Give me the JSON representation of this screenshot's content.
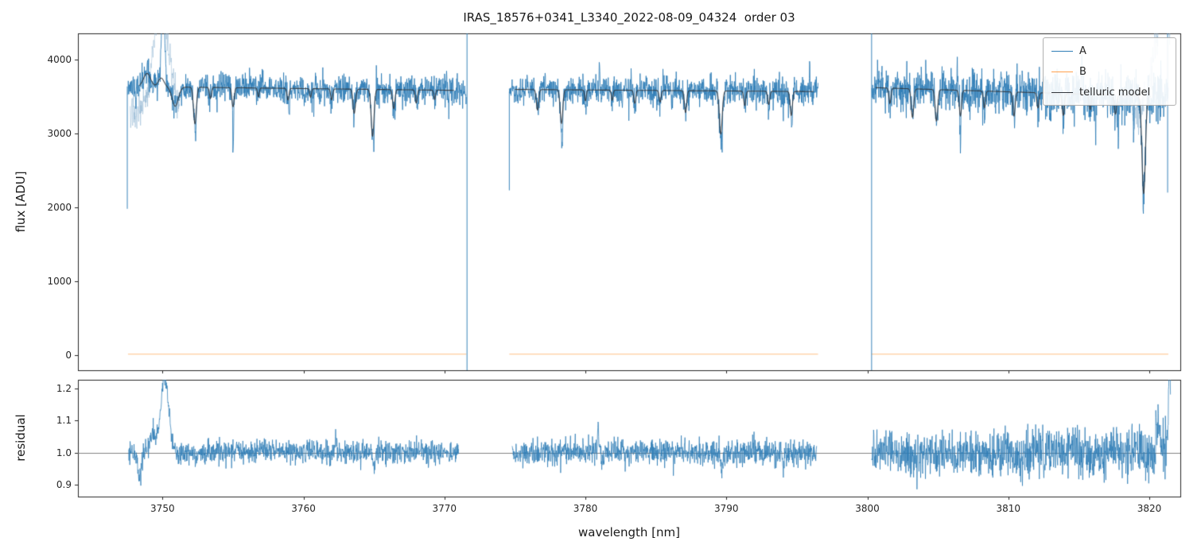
{
  "chart_data": {
    "type": "line",
    "title": "IRAS_18576+0341_L3340_2022-08-09_04324  order 03",
    "xlabel": "wavelength [nm]",
    "xlim": [
      3744.0,
      3822.2
    ],
    "xticks": [
      [
        3750,
        "3750"
      ],
      [
        3760,
        "3760"
      ],
      [
        3770,
        "3770"
      ],
      [
        3780,
        "3780"
      ],
      [
        3790,
        "3790"
      ],
      [
        3800,
        "3800"
      ],
      [
        3810,
        "3810"
      ],
      [
        3820,
        "3820"
      ]
    ],
    "legend": [
      {
        "label": "A",
        "color": "#2e7db6"
      },
      {
        "label": "B",
        "color": "#ffa04d"
      },
      {
        "label": "telluric model",
        "color": "#33373d"
      }
    ],
    "colors": {
      "A": "#2e7db6",
      "A_faint": "rgba(120,165,200,0.40)",
      "B": "#ffb877",
      "model": "#33373d",
      "hline": "#808080",
      "spine": "#262626"
    },
    "flux_panel": {
      "ylabel": "flux [ADU]",
      "ylim": [
        -210,
        4360
      ],
      "yticks": [
        [
          0,
          "0"
        ],
        [
          1000,
          "1000"
        ],
        [
          2000,
          "2000"
        ],
        [
          3000,
          "3000"
        ],
        [
          4000,
          "4000"
        ]
      ],
      "b_value": 8,
      "segments": [
        {
          "x0": 3747.55,
          "x1": 3771.55,
          "model_x0": 3748.35,
          "model_x1": 3770.7,
          "base0": 3640,
          "base1": 3585,
          "sigma": 95,
          "seed": 11,
          "lines": [
            [
              3752.3,
              500,
              0.1
            ],
            [
              3753.4,
              150,
              0.07
            ],
            [
              3755.0,
              260,
              0.08
            ],
            [
              3756.8,
              120,
              0.06
            ],
            [
              3758.9,
              160,
              0.07
            ],
            [
              3760.5,
              120,
              0.06
            ],
            [
              3762.0,
              150,
              0.07
            ],
            [
              3763.6,
              330,
              0.09
            ],
            [
              3764.9,
              640,
              0.1
            ],
            [
              3766.4,
              260,
              0.08
            ],
            [
              3768.0,
              180,
              0.07
            ],
            [
              3769.3,
              130,
              0.06
            ]
          ],
          "model_bumps": [
            [
              3748.9,
              180,
              0.25
            ],
            [
              3749.9,
              120,
              0.2
            ]
          ],
          "model_dips_extra": [
            [
              3750.9,
              260,
              0.22
            ]
          ],
          "blue_peaks": [
            [
              3750.05,
              1300,
              0.1
            ]
          ],
          "down_spikes": [
            [
              3752.35,
              360
            ],
            [
              3755.0,
              620
            ],
            [
              3759.0,
              250
            ],
            [
              3765.0,
              330
            ],
            [
              3766.5,
              260
            ],
            [
              3770.3,
              280
            ]
          ],
          "up_spikes": []
        },
        {
          "x0": 3774.6,
          "x1": 3796.5,
          "model_x0": 3775.0,
          "model_x1": 3796.2,
          "base0": 3600,
          "base1": 3570,
          "sigma": 95,
          "seed": 22,
          "lines": [
            [
              3776.6,
              280,
              0.08
            ],
            [
              3778.3,
              460,
              0.09
            ],
            [
              3780.0,
              150,
              0.06
            ],
            [
              3781.9,
              140,
              0.06
            ],
            [
              3783.5,
              180,
              0.07
            ],
            [
              3785.3,
              160,
              0.07
            ],
            [
              3787.1,
              300,
              0.08
            ],
            [
              3789.6,
              590,
              0.1
            ],
            [
              3791.3,
              200,
              0.07
            ],
            [
              3793.0,
              180,
              0.07
            ],
            [
              3794.6,
              330,
              0.08
            ]
          ],
          "model_bumps": [],
          "model_dips_extra": [],
          "blue_peaks": [],
          "down_spikes": [
            [
              3778.35,
              420
            ],
            [
              3782.6,
              300
            ],
            [
              3789.7,
              330
            ],
            [
              3794.65,
              260
            ]
          ],
          "up_spikes": [
            [
              3781.0,
              430
            ],
            [
              3795.9,
              380
            ]
          ]
        },
        {
          "x0": 3800.3,
          "x1": 3821.35,
          "model_x0": 3800.6,
          "model_x1": 3820.1,
          "base0": 3625,
          "base1": 3500,
          "sigma": 120,
          "sigma1": 170,
          "seed": 33,
          "lines": [
            [
              3801.6,
              210,
              0.07
            ],
            [
              3803.2,
              390,
              0.09
            ],
            [
              3804.9,
              430,
              0.09
            ],
            [
              3806.6,
              350,
              0.08
            ],
            [
              3808.3,
              230,
              0.07
            ],
            [
              3810.4,
              330,
              0.08
            ],
            [
              3812.1,
              210,
              0.07
            ],
            [
              3813.9,
              300,
              0.08
            ],
            [
              3815.8,
              210,
              0.07
            ],
            [
              3817.6,
              260,
              0.08
            ],
            [
              3819.6,
              1330,
              0.12
            ]
          ],
          "model_bumps": [],
          "model_dips_extra": [],
          "blue_peaks": [],
          "down_spikes": [
            [
              3806.6,
              380
            ],
            [
              3809.1,
              300
            ],
            [
              3813.0,
              340
            ],
            [
              3816.2,
              560
            ],
            [
              3817.8,
              680
            ],
            [
              3818.9,
              520
            ]
          ],
          "up_spikes": [
            [
              3815.2,
              380
            ]
          ]
        }
      ],
      "vspikes": [
        {
          "x": 3747.5,
          "y0": 1980,
          "y1": 3640
        },
        {
          "x": 3771.6,
          "y0": -210,
          "y1": 4360
        },
        {
          "x": 3774.6,
          "y0": 2230,
          "y1": 3570
        },
        {
          "x": 3800.3,
          "y0": -210,
          "y1": 4360
        },
        {
          "x": 3821.3,
          "y0": 2200,
          "y1": 4360
        }
      ],
      "faint_features": [
        {
          "x0": 3747.7,
          "x1": 3751.2,
          "base": 3250,
          "amp": 1500,
          "cx": 3749.9,
          "w": 0.55,
          "seed": 44,
          "sigma": 120
        },
        {
          "x0": 3818.8,
          "x1": 3821.6,
          "base": 3250,
          "amp": 1600,
          "cx": 3821.1,
          "w": 0.7,
          "seed": 55,
          "sigma": 150
        }
      ]
    },
    "residual_panel": {
      "ylabel": "residual",
      "ylim": [
        0.862,
        1.228
      ],
      "yticks": [
        [
          0.9,
          "0.9"
        ],
        [
          1.0,
          "1.0"
        ],
        [
          1.1,
          "1.1"
        ],
        [
          1.2,
          "1.2"
        ]
      ],
      "hline": 1.0,
      "segments": [
        {
          "x0": 3747.6,
          "x1": 3771.0,
          "sigma0": 0.018,
          "sigma1": 0.018,
          "seed": 66,
          "features": [
            [
              3750.15,
              0.23,
              0.28
            ],
            [
              3748.35,
              -0.075,
              0.16
            ],
            [
              3749.3,
              0.05,
              0.2
            ],
            [
              3752.35,
              -0.04,
              0.07
            ],
            [
              3762.3,
              0.05,
              0.05
            ],
            [
              3765.0,
              -0.045,
              0.06
            ]
          ]
        },
        {
          "x0": 3774.8,
          "x1": 3796.4,
          "sigma0": 0.02,
          "sigma1": 0.02,
          "seed": 77,
          "features": [
            [
              3780.9,
              0.09,
              0.04
            ],
            [
              3789.7,
              -0.05,
              0.06
            ],
            [
              3794.0,
              -0.04,
              0.05
            ]
          ]
        },
        {
          "x0": 3800.3,
          "x1": 3821.5,
          "sigma0": 0.03,
          "sigma1": 0.046,
          "seed": 88,
          "features": [
            [
              3821.45,
              0.28,
              0.09
            ],
            [
              3820.6,
              0.1,
              0.08
            ],
            [
              3816.0,
              -0.05,
              0.05
            ]
          ]
        }
      ]
    }
  }
}
